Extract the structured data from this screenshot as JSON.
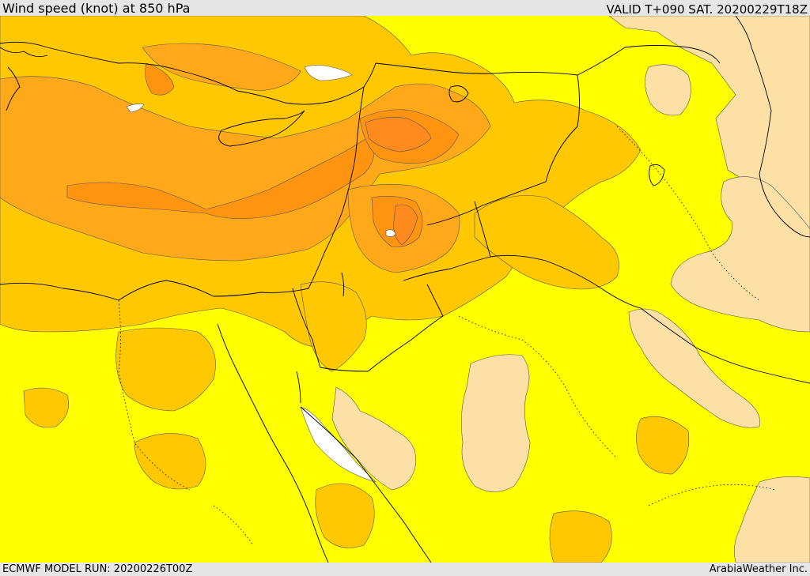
{
  "header": {
    "title": "Wind speed (knot) at 850 hPa",
    "valid_time": "VALID T+090 SAT. 20200229T18Z"
  },
  "footer": {
    "model_run": "ECMWF MODEL RUN: 20200226T00Z",
    "credit": "ArabiaWeather Inc."
  },
  "map": {
    "fill_colors": {
      "calmest": "#ffffff",
      "light": "#fde0a6",
      "base": "#ffff00",
      "moderate": "#ffc800",
      "strong": "#ffa81a",
      "stronger": "#ff9410",
      "strongest": "#ff8a1e"
    },
    "line_colors": {
      "coastline_and_borders": "#000000",
      "contours": "#555555"
    }
  }
}
